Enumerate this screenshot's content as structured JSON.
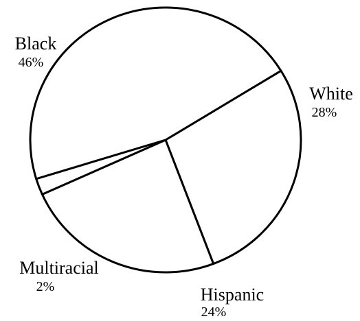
{
  "chart_data": {
    "type": "pie",
    "title": "",
    "slices": [
      {
        "label": "Black",
        "value": 46,
        "display": "46%"
      },
      {
        "label": "White",
        "value": 28,
        "display": "28%"
      },
      {
        "label": "Hispanic",
        "value": 24,
        "display": "24%"
      },
      {
        "label": "Multiracial",
        "value": 2,
        "display": "2%"
      }
    ],
    "colors": {
      "fill": "#ffffff",
      "stroke": "#000000"
    }
  }
}
